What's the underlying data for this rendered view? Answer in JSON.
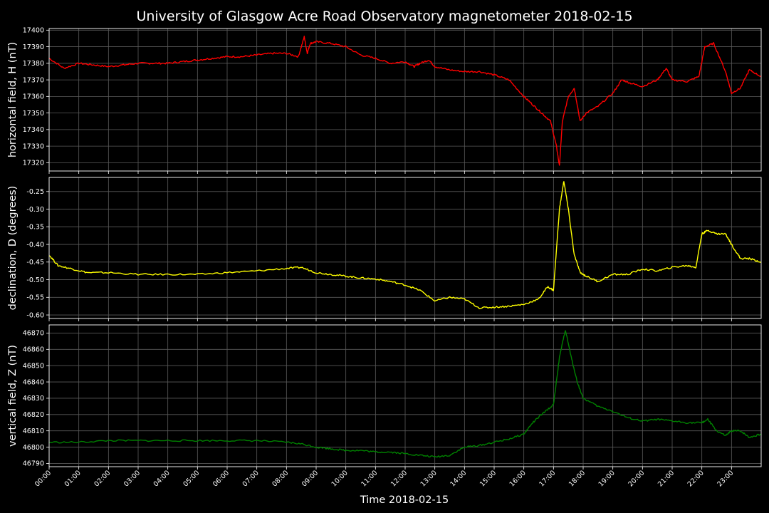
{
  "title": "University of Glasgow Acre Road Observatory magnetometer 2018-02-15",
  "xlabel": "Time 2018-02-15",
  "chart_data": [
    {
      "type": "line",
      "panel": "H",
      "ylabel": "horizontal field, H (nT)",
      "color": "#ff0000",
      "xlim": [
        0,
        24
      ],
      "ylim": [
        17315,
        17401
      ],
      "yticks": [
        17320,
        17330,
        17340,
        17350,
        17360,
        17370,
        17380,
        17390,
        17400
      ],
      "x_hours": [
        0,
        0.5,
        1,
        1.5,
        2,
        2.5,
        3,
        3.5,
        4,
        4.5,
        5,
        5.5,
        6,
        6.5,
        7,
        7.5,
        8,
        8.4,
        8.6,
        8.7,
        8.8,
        9,
        9.5,
        10,
        10.5,
        11,
        11.5,
        12,
        12.3,
        12.5,
        12.8,
        13,
        13.5,
        14,
        14.5,
        15,
        15.5,
        16,
        16.3,
        16.6,
        16.9,
        17.1,
        17.2,
        17.3,
        17.5,
        17.7,
        17.9,
        18.1,
        18.5,
        19,
        19.3,
        19.6,
        20,
        20.5,
        20.8,
        21,
        21.5,
        21.9,
        22.1,
        22.4,
        22.8,
        23,
        23.3,
        23.6,
        24
      ],
      "y": [
        17383,
        17377,
        17380,
        17379,
        17378,
        17379,
        17380,
        17380,
        17380,
        17381,
        17382,
        17383,
        17384,
        17384,
        17385,
        17386,
        17386,
        17384,
        17396,
        17386,
        17392,
        17393,
        17392,
        17390,
        17385,
        17383,
        17380,
        17381,
        17378,
        17380,
        17382,
        17378,
        17376,
        17375,
        17375,
        17373,
        17370,
        17360,
        17355,
        17350,
        17345,
        17330,
        17318,
        17345,
        17360,
        17365,
        17345,
        17350,
        17354,
        17362,
        17370,
        17368,
        17366,
        17370,
        17377,
        17370,
        17369,
        17372,
        17390,
        17392,
        17375,
        17362,
        17365,
        17376,
        17372
      ]
    },
    {
      "type": "line",
      "panel": "D",
      "ylabel": "declination, D (degrees)",
      "color": "#ffff00",
      "xlim": [
        0,
        24
      ],
      "ylim": [
        -0.61,
        -0.21
      ],
      "yticks": [
        -0.6,
        -0.55,
        -0.5,
        -0.45,
        -0.4,
        -0.35,
        -0.3,
        -0.25
      ],
      "x_hours": [
        0,
        0.3,
        0.8,
        1.3,
        2,
        3,
        4,
        5,
        6,
        7,
        8,
        8.5,
        9,
        9.5,
        10,
        10.5,
        11,
        11.5,
        12,
        12.5,
        13,
        13.5,
        14,
        14.5,
        15,
        15.5,
        16,
        16.5,
        16.8,
        17,
        17.2,
        17.35,
        17.5,
        17.7,
        17.9,
        18.1,
        18.5,
        19,
        19.5,
        20,
        20.5,
        21,
        21.5,
        21.8,
        22.0,
        22.2,
        22.5,
        22.8,
        23.0,
        23.3,
        23.6,
        24
      ],
      "y": [
        -0.43,
        -0.46,
        -0.47,
        -0.48,
        -0.48,
        -0.485,
        -0.485,
        -0.485,
        -0.48,
        -0.475,
        -0.468,
        -0.465,
        -0.48,
        -0.485,
        -0.49,
        -0.495,
        -0.498,
        -0.505,
        -0.515,
        -0.53,
        -0.56,
        -0.55,
        -0.555,
        -0.58,
        -0.578,
        -0.575,
        -0.57,
        -0.555,
        -0.52,
        -0.53,
        -0.3,
        -0.22,
        -0.3,
        -0.43,
        -0.48,
        -0.49,
        -0.505,
        -0.485,
        -0.485,
        -0.47,
        -0.475,
        -0.465,
        -0.46,
        -0.465,
        -0.37,
        -0.36,
        -0.37,
        -0.37,
        -0.4,
        -0.44,
        -0.44,
        -0.45
      ]
    },
    {
      "type": "line",
      "panel": "Z",
      "ylabel": "vertical field, Z (nT)",
      "color": "#008000",
      "xlim": [
        0,
        24
      ],
      "ylim": [
        46788,
        46875
      ],
      "yticks": [
        46790,
        46800,
        46810,
        46820,
        46830,
        46840,
        46850,
        46860,
        46870
      ],
      "x_hours": [
        0,
        1,
        2,
        3,
        4,
        5,
        6,
        7,
        8,
        8.5,
        9,
        9.5,
        10,
        10.5,
        11,
        11.5,
        12,
        12.5,
        13,
        13.5,
        14,
        14.5,
        15,
        15.5,
        16,
        16.3,
        16.6,
        17,
        17.2,
        17.4,
        17.6,
        17.8,
        18,
        18.5,
        19,
        19.5,
        20,
        20.5,
        21,
        21.5,
        22,
        22.2,
        22.5,
        22.8,
        23,
        23.3,
        23.6,
        24
      ],
      "y": [
        46803,
        46803,
        46804,
        46804,
        46804,
        46804,
        46804,
        46804,
        46803,
        46802,
        46800,
        46799,
        46798,
        46798,
        46797,
        46797,
        46796,
        46795,
        46794,
        46795,
        46800,
        46801,
        46803,
        46805,
        46808,
        46815,
        46820,
        46826,
        46855,
        46872,
        46855,
        46840,
        46830,
        46825,
        46822,
        46818,
        46816,
        46817,
        46816,
        46815,
        46815,
        46817,
        46810,
        46807,
        46810,
        46810,
        46806,
        46808
      ]
    }
  ],
  "x_tick_labels": [
    "00:00",
    "01:00",
    "02:00",
    "03:00",
    "04:00",
    "05:00",
    "06:00",
    "07:00",
    "08:00",
    "09:00",
    "10:00",
    "11:00",
    "12:00",
    "13:00",
    "14:00",
    "15:00",
    "16:00",
    "17:00",
    "18:00",
    "19:00",
    "20:00",
    "21:00",
    "22:00",
    "23:00"
  ]
}
